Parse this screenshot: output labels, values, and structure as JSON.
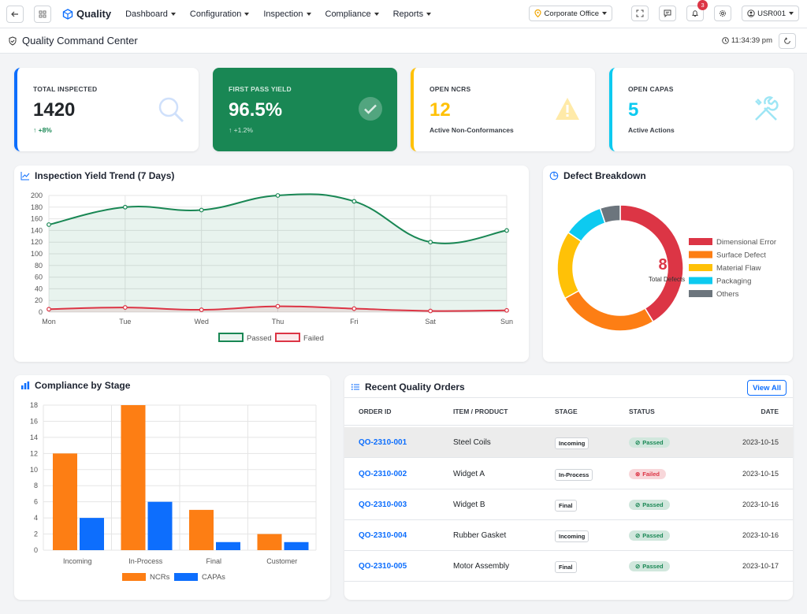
{
  "app": {
    "name": "Quality"
  },
  "nav": {
    "items": [
      "Dashboard",
      "Configuration",
      "Inspection",
      "Compliance",
      "Reports"
    ]
  },
  "toolbar": {
    "location": "Corporate Office",
    "notifications": "3",
    "user": "USR001"
  },
  "page": {
    "title": "Quality Command Center",
    "time": "11:34:39 pm"
  },
  "kpis": [
    {
      "label": "TOTAL INSPECTED",
      "value": "1420",
      "sub": "↑ +8%",
      "color": "#0d6efd"
    },
    {
      "label": "FIRST PASS YIELD",
      "value": "96.5%",
      "sub": "↑ +1.2%",
      "color": "#198754"
    },
    {
      "label": "OPEN NCRS",
      "value": "12",
      "sub": "Active Non-Conformances",
      "color": "#ffc107"
    },
    {
      "label": "OPEN CAPAS",
      "value": "5",
      "sub": "Active Actions",
      "color": "#0dcaf0"
    }
  ],
  "yield_chart": {
    "title": "Inspection Yield Trend (7 Days)",
    "legend": [
      "Passed",
      "Failed"
    ]
  },
  "defect_chart": {
    "title": "Defect Breakdown",
    "center_value": "8",
    "center_label": "Total Defects"
  },
  "compliance_chart": {
    "title": "Compliance by Stage",
    "legend": [
      "NCRs",
      "CAPAs"
    ]
  },
  "orders": {
    "title": "Recent Quality Orders",
    "view_all": "View All",
    "columns": [
      "ORDER ID",
      "ITEM / PRODUCT",
      "STAGE",
      "STATUS",
      "DATE"
    ],
    "rows": [
      {
        "id": "QO-2310-001",
        "item": "Steel Coils",
        "stage": "Incoming",
        "status": "Passed",
        "date": "2023-10-15"
      },
      {
        "id": "QO-2310-002",
        "item": "Widget A",
        "stage": "In-Process",
        "status": "Failed",
        "date": "2023-10-15"
      },
      {
        "id": "QO-2310-003",
        "item": "Widget B",
        "stage": "Final",
        "status": "Passed",
        "date": "2023-10-16"
      },
      {
        "id": "QO-2310-004",
        "item": "Rubber Gasket",
        "stage": "Incoming",
        "status": "Passed",
        "date": "2023-10-16"
      },
      {
        "id": "QO-2310-005",
        "item": "Motor Assembly",
        "stage": "Final",
        "status": "Passed",
        "date": "2023-10-17"
      }
    ]
  },
  "chart_data": [
    {
      "type": "line",
      "title": "Inspection Yield Trend (7 Days)",
      "categories": [
        "Mon",
        "Tue",
        "Wed",
        "Thu",
        "Fri",
        "Sat",
        "Sun"
      ],
      "series": [
        {
          "name": "Passed",
          "values": [
            150,
            180,
            175,
            200,
            190,
            120,
            140
          ],
          "color": "#198754"
        },
        {
          "name": "Failed",
          "values": [
            5,
            8,
            4,
            10,
            6,
            2,
            3
          ],
          "color": "#dc3545"
        }
      ],
      "ylim": [
        0,
        200
      ],
      "yticks": [
        0,
        20,
        40,
        60,
        80,
        100,
        120,
        140,
        160,
        180,
        200
      ],
      "grid": true,
      "legend": "bottom"
    },
    {
      "type": "pie",
      "title": "Defect Breakdown",
      "categories": [
        "Dimensional Error",
        "Surface Defect",
        "Material Flaw",
        "Packaging",
        "Others"
      ],
      "values": [
        40,
        25,
        17,
        10,
        5
      ],
      "colors": [
        "#dc3545",
        "#fd7e14",
        "#ffc107",
        "#0dcaf0",
        "#6c757d"
      ],
      "legend": "right"
    },
    {
      "type": "bar",
      "title": "Compliance by Stage",
      "categories": [
        "Incoming",
        "In-Process",
        "Final",
        "Customer"
      ],
      "series": [
        {
          "name": "NCRs",
          "values": [
            12,
            18,
            5,
            2
          ],
          "color": "#fd7e14"
        },
        {
          "name": "CAPAs",
          "values": [
            4,
            6,
            1,
            1
          ],
          "color": "#0d6efd"
        }
      ],
      "ylim": [
        0,
        18
      ],
      "yticks": [
        0,
        2,
        4,
        6,
        8,
        10,
        12,
        14,
        16,
        18
      ],
      "grid": true,
      "legend": "bottom"
    }
  ]
}
